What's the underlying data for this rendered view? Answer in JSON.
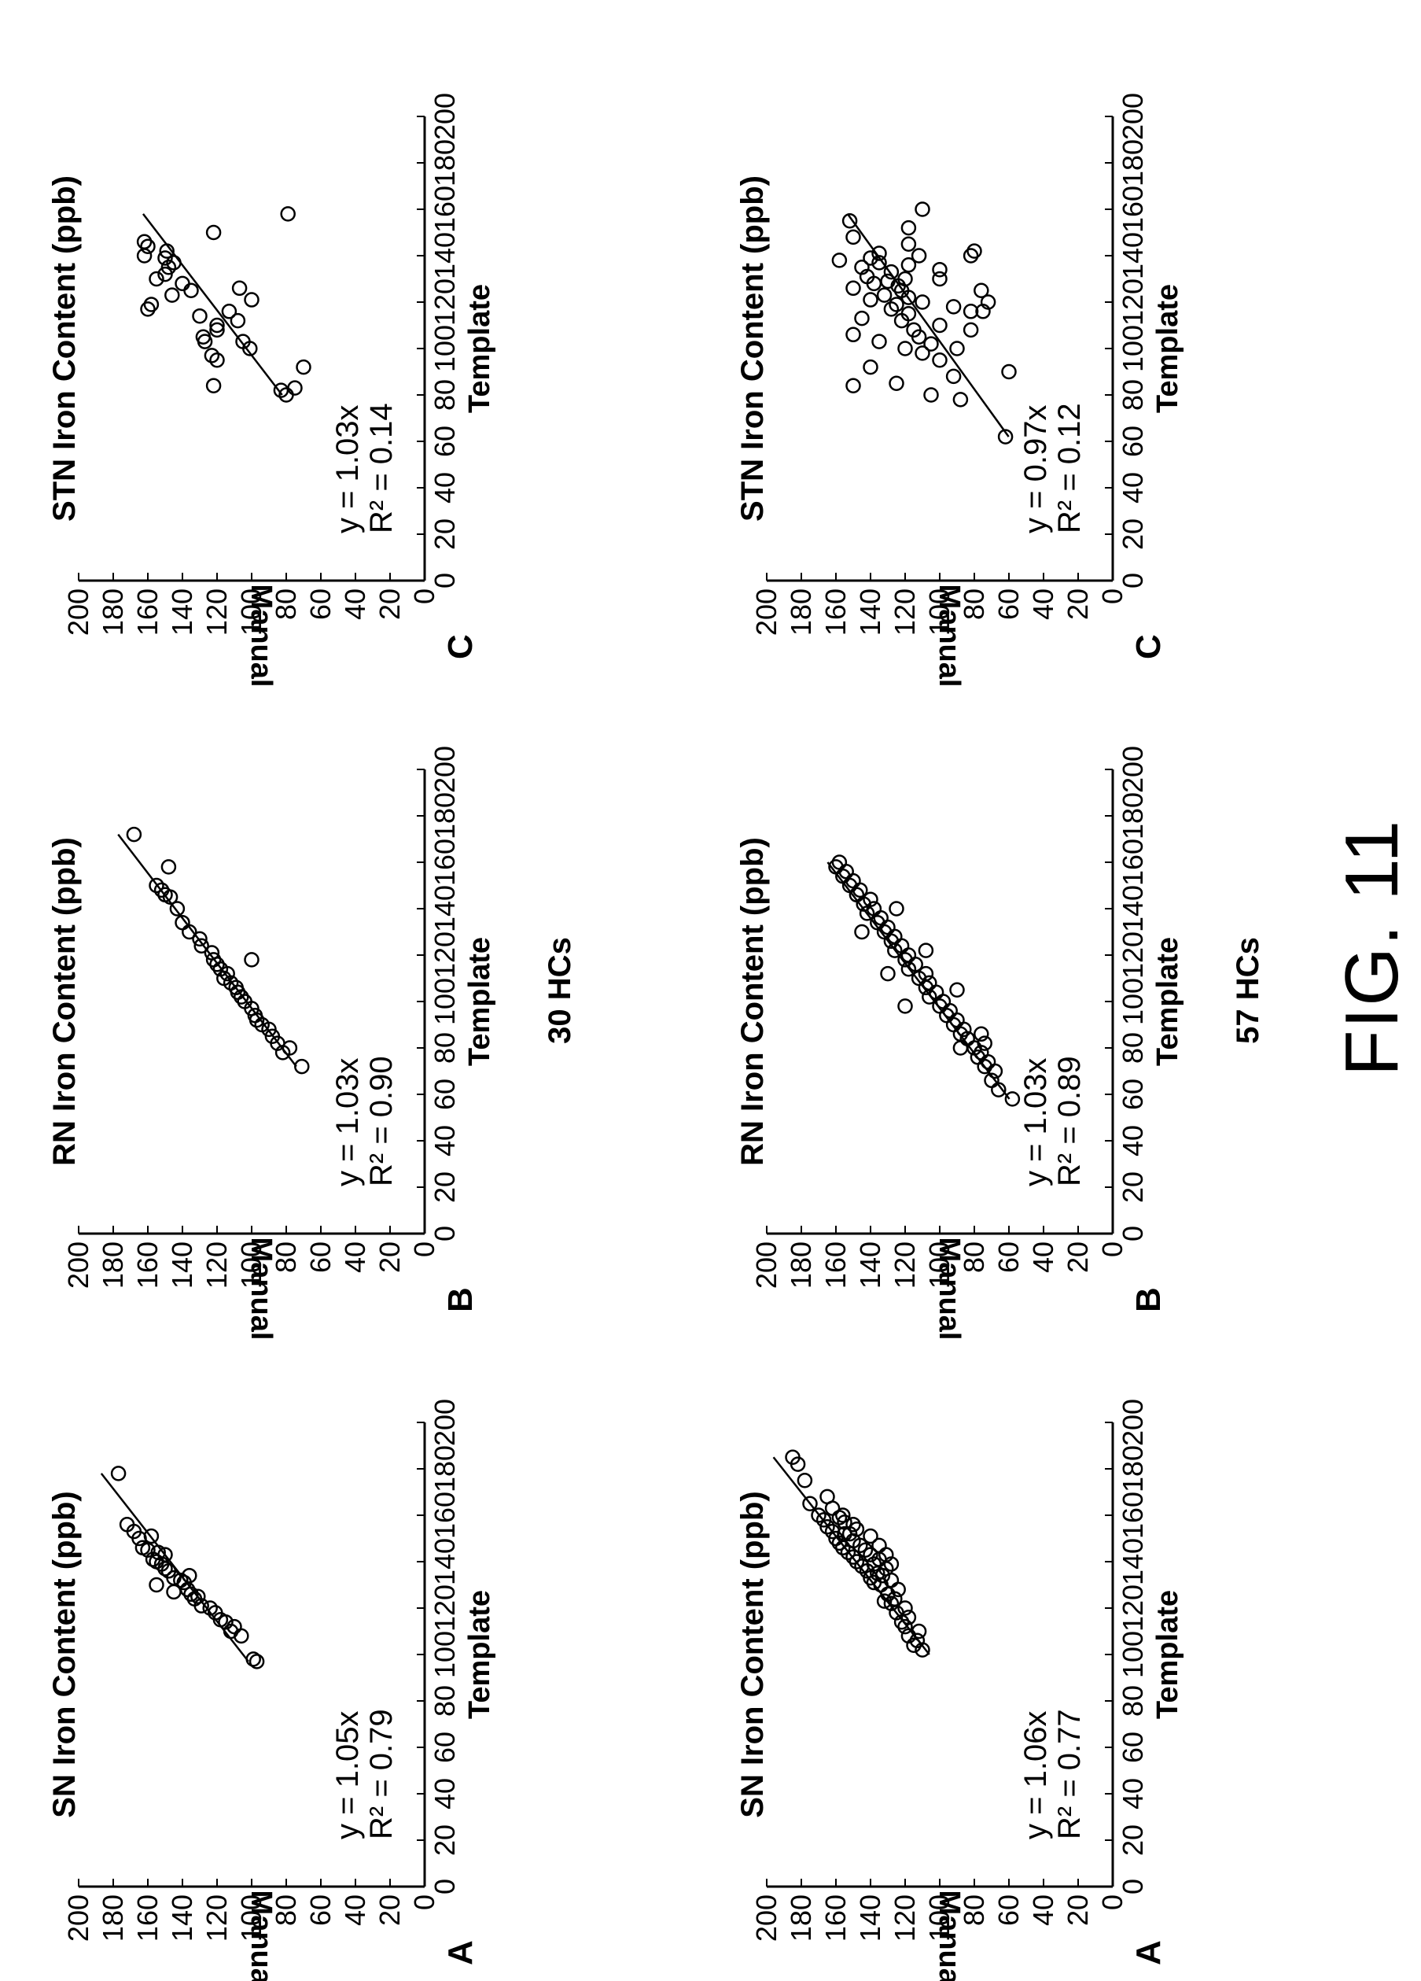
{
  "figure_label": "FIG. 11",
  "groups": [
    {
      "title": "30 HCs",
      "panels": [
        {
          "letter": "A",
          "title": "SN Iron Content (ppb)",
          "equation": "y = 1.05x",
          "r2": "R² = 0.79"
        },
        {
          "letter": "B",
          "title": "RN Iron Content (ppb)",
          "equation": "y = 1.03x",
          "r2": "R² = 0.90"
        },
        {
          "letter": "C",
          "title": "STN Iron Content (ppb)",
          "equation": "y = 1.03x",
          "r2": "R² = 0.14"
        }
      ]
    },
    {
      "title": "57 HCs",
      "panels": [
        {
          "letter": "A",
          "title": "SN Iron Content (ppb)",
          "equation": "y = 1.06x",
          "r2": "R² = 0.77"
        },
        {
          "letter": "B",
          "title": "RN Iron Content (ppb)",
          "equation": "y = 1.03x",
          "r2": "R² = 0.89"
        },
        {
          "letter": "C",
          "title": "STN Iron Content (ppb)",
          "equation": "y = 0.97x",
          "r2": "R² = 0.12"
        }
      ]
    }
  ],
  "chart_data": [
    {
      "type": "scatter",
      "group": "30 HCs",
      "panel": "A",
      "title": "SN Iron Content (ppb)",
      "xlabel": "Template",
      "ylabel": "Manual",
      "xlim": [
        0,
        200
      ],
      "ylim": [
        0,
        200
      ],
      "x_ticks": [
        0,
        20,
        40,
        60,
        80,
        100,
        120,
        140,
        160,
        180,
        200
      ],
      "y_ticks": [
        0,
        20,
        40,
        60,
        80,
        100,
        120,
        140,
        160,
        180,
        200
      ],
      "fit_slope": 1.05,
      "fit_x_range": [
        97,
        178
      ],
      "grid": false,
      "points": [
        [
          97,
          97
        ],
        [
          98,
          99
        ],
        [
          108,
          106
        ],
        [
          110,
          112
        ],
        [
          112,
          110
        ],
        [
          114,
          115
        ],
        [
          115,
          118
        ],
        [
          118,
          121
        ],
        [
          120,
          124
        ],
        [
          121,
          129
        ],
        [
          124,
          133
        ],
        [
          125,
          131
        ],
        [
          126,
          135
        ],
        [
          128,
          137
        ],
        [
          131,
          139
        ],
        [
          132,
          141
        ],
        [
          134,
          136
        ],
        [
          133,
          145
        ],
        [
          136,
          148
        ],
        [
          137,
          150
        ],
        [
          139,
          152
        ],
        [
          140,
          155
        ],
        [
          141,
          157
        ],
        [
          143,
          150
        ],
        [
          144,
          154
        ],
        [
          145,
          160
        ],
        [
          146,
          163
        ],
        [
          150,
          165
        ],
        [
          151,
          158
        ],
        [
          153,
          168
        ],
        [
          156,
          172
        ],
        [
          178,
          177
        ],
        [
          127,
          145
        ],
        [
          130,
          155
        ]
      ]
    },
    {
      "type": "scatter",
      "group": "30 HCs",
      "panel": "B",
      "title": "RN Iron Content (ppb)",
      "xlabel": "Template",
      "ylabel": "Manual",
      "xlim": [
        0,
        200
      ],
      "ylim": [
        0,
        200
      ],
      "x_ticks": [
        0,
        20,
        40,
        60,
        80,
        100,
        120,
        140,
        160,
        180,
        200
      ],
      "y_ticks": [
        0,
        20,
        40,
        60,
        80,
        100,
        120,
        140,
        160,
        180,
        200
      ],
      "fit_slope": 1.03,
      "fit_x_range": [
        72,
        172
      ],
      "grid": false,
      "points": [
        [
          72,
          71
        ],
        [
          78,
          82
        ],
        [
          80,
          78
        ],
        [
          82,
          85
        ],
        [
          85,
          88
        ],
        [
          88,
          90
        ],
        [
          90,
          94
        ],
        [
          92,
          97
        ],
        [
          94,
          98
        ],
        [
          97,
          100
        ],
        [
          100,
          104
        ],
        [
          102,
          106
        ],
        [
          104,
          108
        ],
        [
          106,
          109
        ],
        [
          108,
          112
        ],
        [
          110,
          116
        ],
        [
          112,
          114
        ],
        [
          114,
          118
        ],
        [
          116,
          120
        ],
        [
          118,
          122
        ],
        [
          121,
          123
        ],
        [
          124,
          129
        ],
        [
          127,
          130
        ],
        [
          130,
          136
        ],
        [
          134,
          140
        ],
        [
          140,
          143
        ],
        [
          145,
          147
        ],
        [
          146,
          150
        ],
        [
          148,
          152
        ],
        [
          150,
          155
        ],
        [
          158,
          148
        ],
        [
          172,
          168
        ],
        [
          118,
          100
        ]
      ]
    },
    {
      "type": "scatter",
      "group": "30 HCs",
      "panel": "C",
      "title": "STN Iron Content (ppb)",
      "xlabel": "Template",
      "ylabel": "Manual",
      "xlim": [
        0,
        200
      ],
      "ylim": [
        0,
        200
      ],
      "x_ticks": [
        0,
        20,
        40,
        60,
        80,
        100,
        120,
        140,
        160,
        180,
        200
      ],
      "y_ticks": [
        0,
        20,
        40,
        60,
        80,
        100,
        120,
        140,
        160,
        180,
        200
      ],
      "fit_slope": 1.03,
      "fit_x_range": [
        80,
        158
      ],
      "grid": false,
      "points": [
        [
          80,
          80
        ],
        [
          82,
          83
        ],
        [
          84,
          122
        ],
        [
          92,
          70
        ],
        [
          95,
          120
        ],
        [
          97,
          123
        ],
        [
          100,
          101
        ],
        [
          103,
          105
        ],
        [
          105,
          128
        ],
        [
          108,
          120
        ],
        [
          110,
          120
        ],
        [
          112,
          108
        ],
        [
          114,
          130
        ],
        [
          116,
          113
        ],
        [
          117,
          160
        ],
        [
          119,
          158
        ],
        [
          121,
          100
        ],
        [
          123,
          146
        ],
        [
          125,
          135
        ],
        [
          128,
          140
        ],
        [
          130,
          155
        ],
        [
          132,
          150
        ],
        [
          135,
          148
        ],
        [
          137,
          145
        ],
        [
          139,
          150
        ],
        [
          140,
          162
        ],
        [
          142,
          149
        ],
        [
          144,
          160
        ],
        [
          146,
          162
        ],
        [
          150,
          122
        ],
        [
          158,
          79
        ],
        [
          126,
          107
        ],
        [
          103,
          127
        ],
        [
          83,
          75
        ]
      ]
    },
    {
      "type": "scatter",
      "group": "57 HCs",
      "panel": "A",
      "title": "SN Iron Content (ppb)",
      "xlabel": "Template",
      "ylabel": "Manual",
      "xlim": [
        0,
        200
      ],
      "ylim": [
        0,
        200
      ],
      "x_ticks": [
        0,
        20,
        40,
        60,
        80,
        100,
        120,
        140,
        160,
        180,
        200
      ],
      "y_ticks": [
        0,
        20,
        40,
        60,
        80,
        100,
        120,
        140,
        160,
        180,
        200
      ],
      "fit_slope": 1.06,
      "fit_x_range": [
        100,
        185
      ],
      "grid": false,
      "points": [
        [
          102,
          110
        ],
        [
          104,
          115
        ],
        [
          106,
          113
        ],
        [
          108,
          118
        ],
        [
          110,
          112
        ],
        [
          112,
          120
        ],
        [
          114,
          122
        ],
        [
          116,
          118
        ],
        [
          118,
          125
        ],
        [
          120,
          120
        ],
        [
          122,
          128
        ],
        [
          123,
          132
        ],
        [
          124,
          126
        ],
        [
          126,
          130
        ],
        [
          128,
          124
        ],
        [
          130,
          134
        ],
        [
          131,
          138
        ],
        [
          132,
          128
        ],
        [
          133,
          140
        ],
        [
          134,
          133
        ],
        [
          135,
          136
        ],
        [
          136,
          142
        ],
        [
          137,
          131
        ],
        [
          138,
          145
        ],
        [
          139,
          138
        ],
        [
          140,
          148
        ],
        [
          141,
          135
        ],
        [
          142,
          150
        ],
        [
          143,
          140
        ],
        [
          144,
          153
        ],
        [
          145,
          143
        ],
        [
          146,
          156
        ],
        [
          147,
          146
        ],
        [
          148,
          158
        ],
        [
          149,
          150
        ],
        [
          150,
          160
        ],
        [
          151,
          140
        ],
        [
          152,
          155
        ],
        [
          153,
          162
        ],
        [
          154,
          148
        ],
        [
          155,
          165
        ],
        [
          156,
          150
        ],
        [
          158,
          167
        ],
        [
          159,
          158
        ],
        [
          160,
          170
        ],
        [
          163,
          162
        ],
        [
          165,
          175
        ],
        [
          168,
          165
        ],
        [
          175,
          178
        ],
        [
          182,
          182
        ],
        [
          185,
          185
        ],
        [
          147,
          135
        ],
        [
          139,
          128
        ],
        [
          143,
          131
        ],
        [
          152,
          152
        ],
        [
          157,
          155
        ],
        [
          160,
          156
        ]
      ]
    },
    {
      "type": "scatter",
      "group": "57 HCs",
      "panel": "B",
      "title": "RN Iron Content (ppb)",
      "xlabel": "Template",
      "ylabel": "Manual",
      "xlim": [
        0,
        200
      ],
      "ylim": [
        0,
        200
      ],
      "x_ticks": [
        0,
        20,
        40,
        60,
        80,
        100,
        120,
        140,
        160,
        180,
        200
      ],
      "y_ticks": [
        0,
        20,
        40,
        60,
        80,
        100,
        120,
        140,
        160,
        180,
        200
      ],
      "fit_slope": 1.03,
      "fit_x_range": [
        58,
        160
      ],
      "grid": false,
      "points": [
        [
          58,
          58
        ],
        [
          62,
          66
        ],
        [
          66,
          70
        ],
        [
          70,
          68
        ],
        [
          72,
          74
        ],
        [
          74,
          72
        ],
        [
          76,
          78
        ],
        [
          78,
          76
        ],
        [
          80,
          80
        ],
        [
          82,
          74
        ],
        [
          84,
          84
        ],
        [
          86,
          88
        ],
        [
          88,
          86
        ],
        [
          90,
          92
        ],
        [
          92,
          90
        ],
        [
          94,
          96
        ],
        [
          96,
          94
        ],
        [
          98,
          100
        ],
        [
          100,
          98
        ],
        [
          102,
          106
        ],
        [
          104,
          102
        ],
        [
          106,
          108
        ],
        [
          108,
          106
        ],
        [
          110,
          112
        ],
        [
          112,
          108
        ],
        [
          114,
          118
        ],
        [
          116,
          114
        ],
        [
          118,
          120
        ],
        [
          120,
          118
        ],
        [
          122,
          126
        ],
        [
          124,
          122
        ],
        [
          126,
          128
        ],
        [
          128,
          126
        ],
        [
          130,
          132
        ],
        [
          132,
          130
        ],
        [
          134,
          136
        ],
        [
          136,
          134
        ],
        [
          138,
          142
        ],
        [
          140,
          138
        ],
        [
          142,
          144
        ],
        [
          144,
          140
        ],
        [
          146,
          148
        ],
        [
          148,
          146
        ],
        [
          150,
          152
        ],
        [
          152,
          150
        ],
        [
          154,
          156
        ],
        [
          156,
          154
        ],
        [
          158,
          160
        ],
        [
          160,
          158
        ],
        [
          105,
          90
        ],
        [
          98,
          120
        ],
        [
          86,
          76
        ],
        [
          130,
          145
        ],
        [
          122,
          108
        ],
        [
          112,
          130
        ],
        [
          140,
          125
        ],
        [
          80,
          88
        ]
      ]
    },
    {
      "type": "scatter",
      "group": "57 HCs",
      "panel": "C",
      "title": "STN Iron Content (ppb)",
      "xlabel": "Template",
      "ylabel": "Manual",
      "xlim": [
        0,
        200
      ],
      "ylim": [
        0,
        200
      ],
      "x_ticks": [
        0,
        20,
        40,
        60,
        80,
        100,
        120,
        140,
        160,
        180,
        200
      ],
      "y_ticks": [
        0,
        20,
        40,
        60,
        80,
        100,
        120,
        140,
        160,
        180,
        200
      ],
      "fit_slope": 0.97,
      "fit_x_range": [
        62,
        158
      ],
      "grid": false,
      "points": [
        [
          62,
          62
        ],
        [
          78,
          88
        ],
        [
          80,
          105
        ],
        [
          84,
          150
        ],
        [
          85,
          125
        ],
        [
          88,
          92
        ],
        [
          90,
          60
        ],
        [
          92,
          140
        ],
        [
          95,
          100
        ],
        [
          98,
          110
        ],
        [
          100,
          120
        ],
        [
          102,
          105
        ],
        [
          103,
          135
        ],
        [
          105,
          112
        ],
        [
          106,
          150
        ],
        [
          108,
          115
        ],
        [
          110,
          100
        ],
        [
          112,
          122
        ],
        [
          113,
          145
        ],
        [
          115,
          118
        ],
        [
          116,
          82
        ],
        [
          117,
          128
        ],
        [
          118,
          92
        ],
        [
          119,
          125
        ],
        [
          120,
          110
        ],
        [
          121,
          140
        ],
        [
          122,
          118
        ],
        [
          123,
          132
        ],
        [
          125,
          122
        ],
        [
          126,
          150
        ],
        [
          127,
          124
        ],
        [
          128,
          138
        ],
        [
          129,
          130
        ],
        [
          130,
          120
        ],
        [
          131,
          142
        ],
        [
          133,
          128
        ],
        [
          134,
          100
        ],
        [
          135,
          145
        ],
        [
          136,
          118
        ],
        [
          137,
          135
        ],
        [
          138,
          158
        ],
        [
          139,
          140
        ],
        [
          140,
          112
        ],
        [
          141,
          135
        ],
        [
          142,
          80
        ],
        [
          145,
          118
        ],
        [
          148,
          150
        ],
        [
          152,
          118
        ],
        [
          155,
          152
        ],
        [
          160,
          110
        ],
        [
          116,
          75
        ],
        [
          120,
          72
        ],
        [
          125,
          76
        ],
        [
          108,
          82
        ],
        [
          140,
          82
        ],
        [
          130,
          100
        ],
        [
          100,
          90
        ]
      ]
    }
  ]
}
